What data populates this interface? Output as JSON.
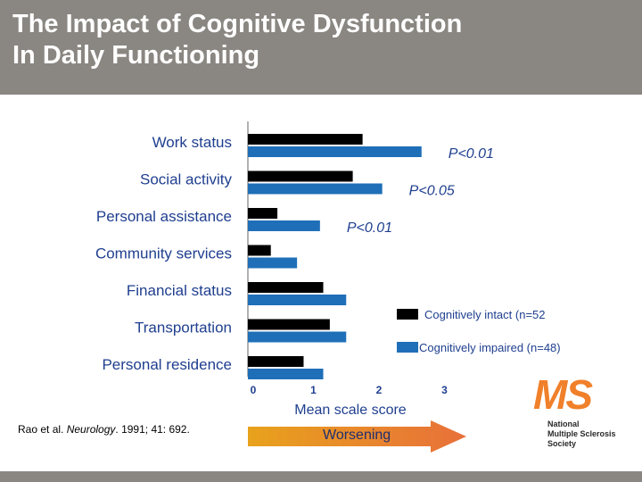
{
  "header": {
    "title_line1": "The Impact of Cognitive Dysfunction",
    "title_line2": "In Daily Functioning"
  },
  "citation": {
    "prefix": "Rao et al. ",
    "journal": "Neurology",
    "suffix": ". 1991; 41: 692."
  },
  "worsening_label": "Worsening",
  "logo": {
    "letters": "MS",
    "line1": "National",
    "line2": "Multiple Sclerosis",
    "line3": "Society"
  },
  "colors": {
    "header_bg": "#8a8681",
    "intact": "#000000",
    "impaired": "#1f6fb8",
    "text": "#1f3f8f",
    "arrow_start": "#e8a21c",
    "arrow_end": "#e8703a"
  },
  "chart_data": {
    "type": "bar",
    "orientation": "horizontal",
    "categories": [
      "Work status",
      "Social activity",
      "Personal assistance",
      "Community services",
      "Financial status",
      "Transportation",
      "Personal residence"
    ],
    "series": [
      {
        "name": "Cognitively intact (n=52",
        "values": [
          1.75,
          1.6,
          0.45,
          0.35,
          1.15,
          1.25,
          0.85
        ]
      },
      {
        "name": "Cognitively impaired (n=48)",
        "values": [
          2.65,
          2.05,
          1.1,
          0.75,
          1.5,
          1.5,
          1.15
        ]
      }
    ],
    "annotations": [
      {
        "category": "Work status",
        "text": "P<0.01"
      },
      {
        "category": "Social activity",
        "text": "P<0.05"
      },
      {
        "category": "Personal assistance",
        "text": "P<0.01"
      }
    ],
    "xlabel": "Mean scale score",
    "xlim": [
      0,
      3
    ],
    "xticks": [
      "0",
      "1",
      "2",
      "3"
    ],
    "grid": false,
    "legend_position": "right"
  }
}
